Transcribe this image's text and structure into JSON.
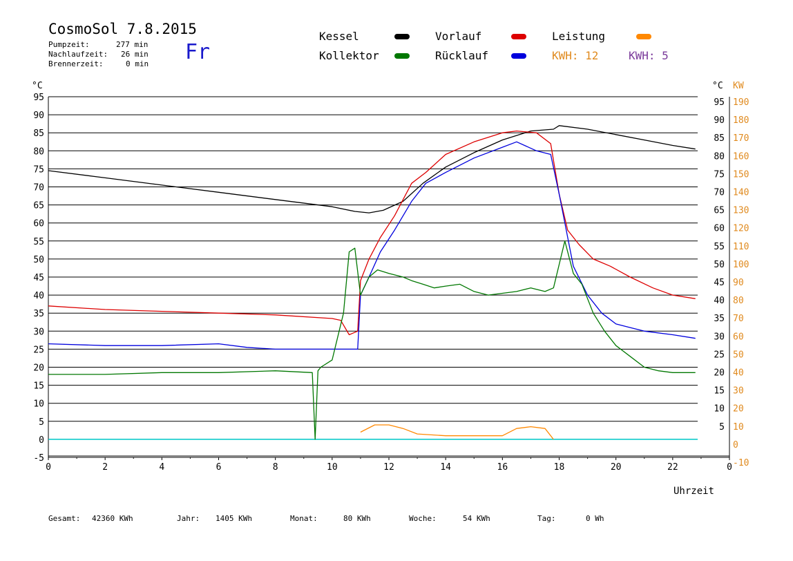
{
  "header": {
    "title": "CosmoSol 7.8.2015",
    "weekday": "Fr",
    "stats": [
      {
        "label": "Pumpzeit:",
        "value": "277 min"
      },
      {
        "label": "Nachlaufzeit:",
        "value": "26 min"
      },
      {
        "label": "Brennerzeit:",
        "value": "0 min"
      }
    ]
  },
  "legend": {
    "kessel": "Kessel",
    "vorlauf": "Vorlauf",
    "leistung": "Leistung",
    "kollektor": "Kollektor",
    "ruecklauf": "Rücklauf",
    "kwh1": "KWH: 12",
    "kwh2": "KWH: 5"
  },
  "colors": {
    "kessel": "#000000",
    "vorlauf": "#dd0000",
    "leistung": "#ff8800",
    "kollektor": "#007700",
    "ruecklauf": "#0000dd",
    "kwh1": "#e08a1e",
    "kwh2": "#7a3a9a",
    "baseline": "#00cccc",
    "right_axis": "#e08a1e"
  },
  "footer": {
    "gesamt_label": "Gesamt:",
    "gesamt_value": "42360 KWh",
    "jahr_label": "Jahr:",
    "jahr_value": "1405 KWh",
    "monat_label": "Monat:",
    "monat_value": "80 KWh",
    "woche_label": "Woche:",
    "woche_value": "54 KWh",
    "tag_label": "Tag:",
    "tag_value": "0 Wh"
  },
  "chart_data": {
    "type": "line",
    "xlabel": "Uhrzeit",
    "ylabel_left": "°C",
    "ylabel_right_temp": "°C",
    "ylabel_right_power": "KW",
    "xlim": [
      0,
      24
    ],
    "ylim": [
      -5,
      95
    ],
    "y2lim": [
      -10,
      190
    ],
    "x_ticks": [
      "0",
      "2",
      "4",
      "6",
      "8",
      "10",
      "12",
      "14",
      "16",
      "18",
      "20",
      "22",
      "0"
    ],
    "y_ticks_left": [
      "95",
      "90",
      "85",
      "80",
      "75",
      "70",
      "65",
      "60",
      "55",
      "50",
      "45",
      "40",
      "35",
      "30",
      "25",
      "20",
      "15",
      "10",
      "5",
      "0",
      "-5"
    ],
    "y_ticks_right_temp": [
      "95",
      "90",
      "85",
      "80",
      "75",
      "70",
      "65",
      "60",
      "55",
      "50",
      "45",
      "40",
      "35",
      "30",
      "25",
      "20",
      "15",
      "10",
      "5"
    ],
    "y_ticks_right_power": [
      "190",
      "180",
      "170",
      "160",
      "150",
      "140",
      "130",
      "120",
      "110",
      "100",
      "90",
      "80",
      "70",
      "60",
      "50",
      "40",
      "30",
      "20",
      "10",
      "0",
      "-10"
    ],
    "grid": "horizontal",
    "series": [
      {
        "name": "Kessel",
        "color": "#000000",
        "x": [
          0,
          2,
          4,
          6,
          8,
          10,
          10.8,
          11.3,
          11.8,
          12.5,
          13.2,
          14,
          15,
          16,
          17,
          17.8,
          18,
          19,
          20,
          21,
          22,
          22.8
        ],
        "y": [
          74.5,
          72.5,
          70.5,
          68.5,
          66.5,
          64.5,
          63.2,
          62.8,
          63.5,
          66,
          71,
          75.5,
          79.5,
          83,
          85.5,
          86,
          87,
          86,
          84.5,
          83,
          81.5,
          80.5
        ]
      },
      {
        "name": "Vorlauf",
        "color": "#dd0000",
        "x": [
          0,
          2,
          4,
          6,
          8,
          10,
          10.3,
          10.6,
          10.9,
          11.0,
          11.3,
          11.7,
          12.2,
          12.8,
          13.3,
          14,
          15,
          16,
          16.5,
          17.2,
          17.7,
          18,
          18.3,
          18.7,
          19.2,
          19.8,
          20.5,
          21.3,
          22,
          22.8
        ],
        "y": [
          37,
          36,
          35.5,
          35,
          34.5,
          33.5,
          33,
          29,
          30,
          44,
          50,
          56,
          62,
          71,
          74,
          79,
          82.5,
          85,
          85.5,
          85,
          82,
          68,
          58,
          54,
          50,
          48,
          45,
          42,
          40,
          39
        ]
      },
      {
        "name": "Rücklauf",
        "color": "#0000dd",
        "x": [
          0,
          2,
          4,
          6,
          7,
          8,
          9,
          10,
          10.9,
          11.0,
          11.3,
          11.7,
          12.2,
          12.8,
          13.3,
          14,
          15,
          16,
          16.5,
          17.2,
          17.7,
          18,
          18.5,
          19,
          19.5,
          20,
          20.5,
          21,
          22,
          22.8
        ],
        "y": [
          26.5,
          26,
          26,
          26.5,
          25.5,
          25,
          25,
          25,
          25,
          40,
          45,
          52,
          58,
          66,
          71,
          74,
          78,
          81,
          82.5,
          80,
          79,
          68,
          48,
          40,
          35,
          32,
          31,
          30,
          29,
          28
        ]
      },
      {
        "name": "Kollektor",
        "color": "#007700",
        "x": [
          0,
          2,
          4,
          6,
          8,
          9.3,
          9.4,
          9.5,
          9.6,
          10,
          10.4,
          10.6,
          10.8,
          11.0,
          11.3,
          11.6,
          12,
          12.5,
          12.8,
          13.2,
          13.6,
          14,
          14.5,
          15,
          15.5,
          16,
          16.5,
          17,
          17.5,
          17.8,
          18.2,
          18.5,
          18.8,
          19.2,
          19.6,
          20,
          20.5,
          21,
          21.5,
          22,
          22.8
        ],
        "y": [
          18,
          18,
          18.5,
          18.5,
          19,
          18.5,
          0,
          19,
          20,
          22,
          35,
          52,
          53,
          40,
          45,
          47,
          46,
          45,
          44,
          43,
          42,
          42.5,
          43,
          41,
          40,
          40.5,
          41,
          42,
          41,
          42,
          55,
          46,
          43,
          35,
          30,
          26,
          23,
          20,
          19,
          18.5,
          18.5
        ]
      },
      {
        "name": "Leistung",
        "color": "#ff8800",
        "x": [
          11.0,
          11.5,
          12,
          12.5,
          13,
          14,
          15,
          16,
          16.5,
          17,
          17.5,
          17.8
        ],
        "y": [
          2,
          4,
          4,
          3,
          1.5,
          1,
          1,
          1,
          3,
          3.5,
          3,
          0
        ]
      }
    ]
  }
}
